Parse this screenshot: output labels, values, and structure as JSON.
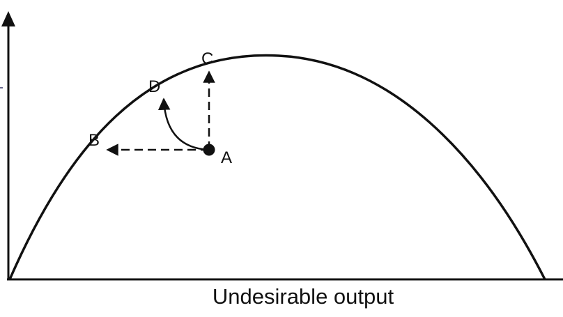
{
  "diagram": {
    "x_axis_label": "Undesirable output",
    "points": {
      "a": "A",
      "b": "B",
      "c": "C",
      "d": "D"
    },
    "colors": {
      "stroke": "#111111",
      "background": "#ffffff"
    }
  }
}
